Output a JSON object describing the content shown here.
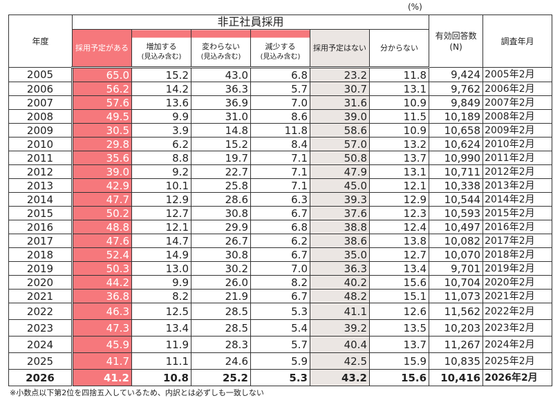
{
  "unit_label": "(%)",
  "header": {
    "year": "年度",
    "group": "非正社員採用",
    "planned": "採用予定がある",
    "increase": [
      "増加する",
      "(見込み含む)"
    ],
    "same": [
      "変わらない",
      "(見込み含む)"
    ],
    "decrease": [
      "減少する",
      "(見込み含む)"
    ],
    "not_planned": "採用予定はない",
    "unknown": "分からない",
    "n": [
      "有効回答数",
      "(N)"
    ],
    "survey": "調査年月"
  },
  "colors": {
    "planned": "#f6787c",
    "not_planned": "#ebe6e3"
  },
  "rows": [
    [
      "2005",
      "65.0",
      "15.2",
      "43.0",
      "6.8",
      "23.2",
      "11.8",
      "9,424",
      "2005年2月"
    ],
    [
      "2006",
      "56.2",
      "14.2",
      "36.3",
      "5.7",
      "30.7",
      "13.1",
      "9,762",
      "2006年2月"
    ],
    [
      "2007",
      "57.6",
      "13.6",
      "36.9",
      "7.0",
      "31.6",
      "10.9",
      "9,849",
      "2007年2月"
    ],
    [
      "2008",
      "49.5",
      "9.9",
      "31.0",
      "8.6",
      "39.0",
      "11.5",
      "10,189",
      "2008年2月"
    ],
    [
      "2009",
      "30.5",
      "3.9",
      "14.8",
      "11.8",
      "58.6",
      "10.9",
      "10,658",
      "2009年2月"
    ],
    [
      "2010",
      "29.8",
      "6.2",
      "15.2",
      "8.4",
      "57.0",
      "13.2",
      "10,624",
      "2010年2月"
    ],
    [
      "2011",
      "35.6",
      "8.8",
      "19.7",
      "7.1",
      "50.8",
      "13.7",
      "10,990",
      "2011年2月"
    ],
    [
      "2012",
      "39.0",
      "9.2",
      "22.7",
      "7.1",
      "47.9",
      "13.1",
      "10,711",
      "2012年2月"
    ],
    [
      "2013",
      "42.9",
      "10.1",
      "25.8",
      "7.1",
      "45.0",
      "12.1",
      "10,338",
      "2013年2月"
    ],
    [
      "2014",
      "47.7",
      "12.9",
      "28.6",
      "6.3",
      "39.3",
      "12.9",
      "10,544",
      "2014年2月"
    ],
    [
      "2015",
      "50.2",
      "12.7",
      "30.8",
      "6.7",
      "37.6",
      "12.3",
      "10,593",
      "2015年2月"
    ],
    [
      "2016",
      "48.8",
      "12.1",
      "29.9",
      "6.8",
      "38.8",
      "12.4",
      "10,497",
      "2016年2月"
    ],
    [
      "2017",
      "47.6",
      "14.7",
      "26.7",
      "6.2",
      "38.6",
      "13.8",
      "10,082",
      "2017年2月"
    ],
    [
      "2018",
      "52.4",
      "14.9",
      "30.8",
      "6.7",
      "35.0",
      "12.7",
      "10,070",
      "2018年2月"
    ],
    [
      "2019",
      "50.3",
      "13.0",
      "30.2",
      "7.0",
      "36.3",
      "13.4",
      "9,701",
      "2019年2月"
    ],
    [
      "2020",
      "44.2",
      "9.9",
      "26.0",
      "8.2",
      "40.2",
      "15.6",
      "10,704",
      "2020年2月"
    ],
    [
      "2021",
      "36.8",
      "8.2",
      "21.9",
      "6.7",
      "48.2",
      "15.1",
      "11,073",
      "2021年2月"
    ],
    [
      "2022",
      "46.3",
      "12.5",
      "28.5",
      "5.3",
      "41.1",
      "12.6",
      "11,562",
      "2022年2月"
    ],
    [
      "2023",
      "47.3",
      "13.4",
      "28.5",
      "5.4",
      "39.2",
      "13.5",
      "10,203",
      "2023年2月"
    ],
    [
      "2024",
      "45.9",
      "11.9",
      "28.3",
      "5.7",
      "40.4",
      "13.7",
      "11,267",
      "2024年2月"
    ],
    [
      "2025",
      "41.7",
      "11.1",
      "24.6",
      "5.9",
      "42.5",
      "15.9",
      "10,835",
      "2025年2月"
    ],
    [
      "2026",
      "41.2",
      "10.8",
      "25.2",
      "5.3",
      "43.2",
      "15.6",
      "10,416",
      "2026年2月"
    ]
  ],
  "footnote": "※小数点以下第2位を四捨五入しているため、内訳とは必ずしも一致しない"
}
